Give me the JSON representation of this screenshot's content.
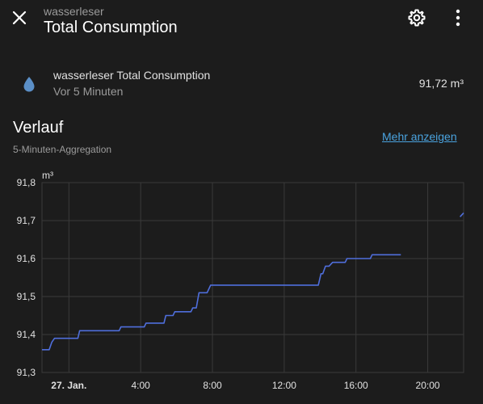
{
  "header": {
    "subtitle": "wasserleser",
    "title": "Total Consumption"
  },
  "icons": {
    "close": "close-icon",
    "settings": "gear-icon",
    "more": "more-vertical-icon",
    "entity": "water-drop-icon"
  },
  "entity": {
    "name": "wasserleser Total Consumption",
    "last_changed": "Vor 5 Minuten",
    "state": "91,72 m³"
  },
  "history": {
    "title": "Verlauf",
    "subtitle": "5-Minuten-Aggregation",
    "show_more": "Mehr anzeigen"
  },
  "colors": {
    "background": "#1c1c1c",
    "line": "#4f6edb",
    "grid": "#3a3a3a",
    "link": "#4aa3df",
    "drop": "#5b8fc7"
  },
  "chart_data": {
    "type": "line",
    "ylabel": "m³",
    "ylim": [
      91.3,
      91.8
    ],
    "yticks": [
      "91,8",
      "91,7",
      "91,6",
      "91,5",
      "91,4",
      "91,3"
    ],
    "xlim": [
      -1.5,
      22
    ],
    "xticks": [
      {
        "x": 0,
        "label": "27. Jan."
      },
      {
        "x": 4,
        "label": "4:00"
      },
      {
        "x": 8,
        "label": "8:00"
      },
      {
        "x": 12,
        "label": "12:00"
      },
      {
        "x": 16,
        "label": "16:00"
      },
      {
        "x": 20,
        "label": "20:00"
      }
    ],
    "series": [
      {
        "points": [
          [
            -1.5,
            91.36
          ],
          [
            -1.1,
            91.36
          ],
          [
            -0.95,
            91.38
          ],
          [
            -0.8,
            91.39
          ],
          [
            0.5,
            91.39
          ],
          [
            0.6,
            91.41
          ],
          [
            2.8,
            91.41
          ],
          [
            2.9,
            91.42
          ],
          [
            4.2,
            91.42
          ],
          [
            4.3,
            91.43
          ],
          [
            5.3,
            91.43
          ],
          [
            5.4,
            91.45
          ],
          [
            5.8,
            91.45
          ],
          [
            5.9,
            91.46
          ],
          [
            6.8,
            91.46
          ],
          [
            6.9,
            91.47
          ],
          [
            7.1,
            91.47
          ],
          [
            7.25,
            91.51
          ],
          [
            7.7,
            91.51
          ],
          [
            7.8,
            91.52
          ],
          [
            7.9,
            91.53
          ],
          [
            13.9,
            91.53
          ],
          [
            14.05,
            91.56
          ],
          [
            14.15,
            91.56
          ],
          [
            14.3,
            91.58
          ],
          [
            14.5,
            91.58
          ],
          [
            14.7,
            91.59
          ],
          [
            15.4,
            91.59
          ],
          [
            15.5,
            91.6
          ],
          [
            16.8,
            91.6
          ],
          [
            16.9,
            91.61
          ],
          [
            18.5,
            91.61
          ]
        ]
      },
      {
        "points": [
          [
            21.8,
            91.71
          ],
          [
            22,
            91.72
          ]
        ]
      }
    ]
  }
}
